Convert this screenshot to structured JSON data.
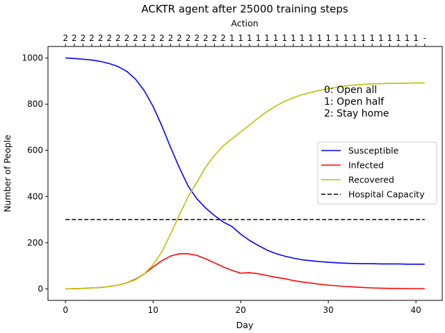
{
  "chart_data": {
    "type": "line",
    "title": "ACKTR agent after 25000 training steps",
    "xlabel": "Day",
    "ylabel": "Number of People",
    "top_axis_label": "Action",
    "xlim": [
      -2,
      43
    ],
    "ylim": [
      -50,
      1050
    ],
    "xticks": [
      0,
      10,
      20,
      30,
      40
    ],
    "yticks": [
      0,
      200,
      400,
      600,
      800,
      1000
    ],
    "x": [
      0,
      1,
      2,
      3,
      4,
      5,
      6,
      7,
      8,
      9,
      10,
      11,
      12,
      13,
      14,
      15,
      16,
      17,
      18,
      19,
      20,
      21,
      22,
      23,
      24,
      25,
      26,
      27,
      28,
      29,
      30,
      31,
      32,
      33,
      34,
      35,
      36,
      37,
      38,
      39,
      40,
      41
    ],
    "actions": [
      "2",
      "2",
      "2",
      "2",
      "2",
      "2",
      "2",
      "2",
      "2",
      "2",
      "2",
      "2",
      "2",
      "2",
      "2",
      "2",
      "2",
      "2",
      "2",
      "1",
      "1",
      "1",
      "1",
      "1",
      "1",
      "1",
      "1",
      "1",
      "1",
      "1",
      "1",
      "1",
      "1",
      "1",
      "1",
      "1",
      "1",
      "1",
      "1",
      "1",
      "1",
      "-"
    ],
    "series": [
      {
        "name": "Susceptible",
        "color": "#0000ff",
        "dash": "solid",
        "values": [
          1000,
          998,
          995,
          991,
          985,
          976,
          963,
          942,
          908,
          858,
          790,
          706,
          612,
          525,
          445,
          390,
          350,
          318,
          290,
          270,
          237,
          210,
          188,
          168,
          153,
          142,
          133,
          126,
          122,
          118,
          115,
          113,
          111,
          110,
          109,
          109,
          108,
          108,
          108,
          107,
          107,
          107
        ]
      },
      {
        "name": "Infected",
        "color": "#ff0000",
        "dash": "solid",
        "values": [
          0,
          1,
          2,
          4,
          6,
          10,
          16,
          26,
          42,
          65,
          95,
          122,
          142,
          152,
          152,
          145,
          130,
          113,
          95,
          80,
          68,
          70,
          65,
          58,
          50,
          44,
          36,
          30,
          25,
          20,
          16,
          13,
          10,
          8,
          6,
          4,
          3,
          2,
          2,
          1,
          1,
          1
        ]
      },
      {
        "name": "Recovered",
        "color": "#bfbf00",
        "dash": "solid",
        "values": [
          0,
          1,
          2,
          4,
          6,
          10,
          16,
          26,
          40,
          65,
          105,
          160,
          238,
          320,
          400,
          462,
          528,
          578,
          620,
          650,
          680,
          710,
          740,
          768,
          792,
          812,
          828,
          841,
          851,
          860,
          867,
          874,
          879,
          883,
          886,
          888,
          889,
          890,
          891,
          891,
          892,
          892
        ]
      },
      {
        "name": "Hospital Capacity",
        "color": "#000000",
        "dash": "dashed",
        "values": [
          300,
          300,
          300,
          300,
          300,
          300,
          300,
          300,
          300,
          300,
          300,
          300,
          300,
          300,
          300,
          300,
          300,
          300,
          300,
          300,
          300,
          300,
          300,
          300,
          300,
          300,
          300,
          300,
          300,
          300,
          300,
          300,
          300,
          300,
          300,
          300,
          300,
          300,
          300,
          300,
          300,
          300
        ]
      }
    ],
    "legend_location": "center-right",
    "annotation_lines": [
      "0: Open all",
      "1: Open half",
      "2: Stay home"
    ],
    "grid": false
  }
}
